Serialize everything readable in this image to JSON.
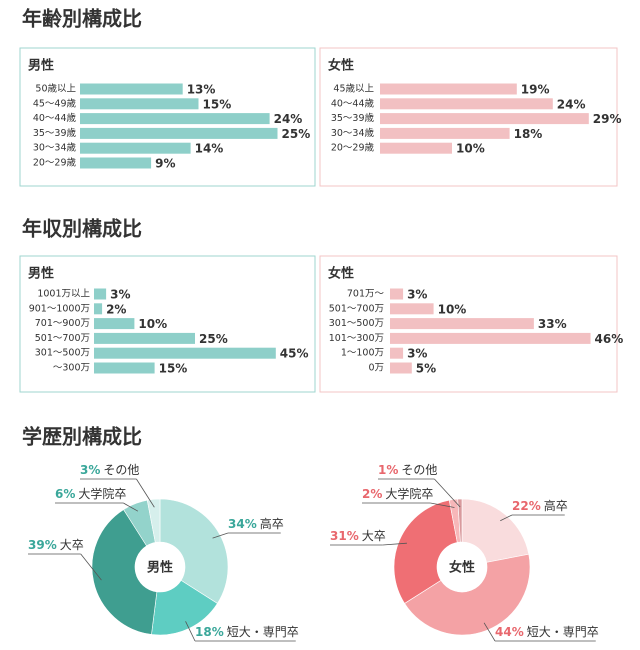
{
  "sections": [
    "年齢別構成比",
    "年収別構成比",
    "学歴別構成比"
  ],
  "chart_data": [
    {
      "type": "hbar",
      "title": "男性",
      "categories": [
        "50歳以上",
        "45〜49歳",
        "40〜44歳",
        "35〜39歳",
        "30〜34歳",
        "20〜29歳"
      ],
      "values": [
        13,
        15,
        24,
        25,
        14,
        9
      ],
      "value_labels": [
        "13%",
        "15%",
        "24%",
        "25%",
        "14%",
        "9%"
      ],
      "color": "#8ecfc9",
      "label_color": "#3aa79a",
      "xlim": [
        0,
        30
      ]
    },
    {
      "type": "hbar",
      "title": "女性",
      "categories": [
        "45歳以上",
        "40〜44歳",
        "35〜39歳",
        "30〜34歳",
        "20〜29歳"
      ],
      "values": [
        19,
        24,
        29,
        18,
        10
      ],
      "value_labels": [
        "19%",
        "24%",
        "29%",
        "18%",
        "10%"
      ],
      "color": "#f2c0c2",
      "label_color": "#e8676d",
      "xlim": [
        0,
        30
      ]
    },
    {
      "type": "hbar",
      "title": "男性",
      "categories": [
        "1001万以上",
        "901〜1000万",
        "701〜900万",
        "501〜700万",
        "301〜500万",
        "〜300万"
      ],
      "values": [
        3,
        2,
        10,
        25,
        45,
        15
      ],
      "value_labels": [
        "3%",
        "2%",
        "10%",
        "25%",
        "45%",
        "15%"
      ],
      "color": "#8ecfc9",
      "label_color": "#3aa79a",
      "xlim": [
        0,
        50
      ]
    },
    {
      "type": "hbar",
      "title": "女性",
      "categories": [
        "701万〜",
        "501〜700万",
        "301〜500万",
        "101〜300万",
        "1〜100万",
        "0万"
      ],
      "values": [
        3,
        10,
        33,
        46,
        3,
        5
      ],
      "value_labels": [
        "3%",
        "10%",
        "33%",
        "46%",
        "3%",
        "5%"
      ],
      "color": "#f2c0c2",
      "label_color": "#e8676d",
      "xlim": [
        0,
        50
      ]
    },
    {
      "type": "donut",
      "center_label": "男性",
      "categories": [
        "高卒",
        "短大・専門卒",
        "大卒",
        "大学院卒",
        "その他"
      ],
      "values": [
        34,
        18,
        39,
        6,
        3
      ],
      "value_labels": [
        "34%",
        "18%",
        "39%",
        "6%",
        "3%"
      ],
      "colors": [
        "#b2e2dc",
        "#5ecdc2",
        "#3f9e90",
        "#93d3cb",
        "#d6efec"
      ],
      "label_color": "#3aa79a"
    },
    {
      "type": "donut",
      "center_label": "女性",
      "categories": [
        "高卒",
        "短大・専門卒",
        "大卒",
        "大学院卒",
        "その他"
      ],
      "values": [
        22,
        44,
        31,
        2,
        1
      ],
      "value_labels": [
        "22%",
        "44%",
        "31%",
        "2%",
        "1%"
      ],
      "colors": [
        "#f9dcdd",
        "#f4a2a5",
        "#ef6f74",
        "#f7b7b9",
        "#d99a9d"
      ],
      "label_color": "#e8676d"
    }
  ]
}
